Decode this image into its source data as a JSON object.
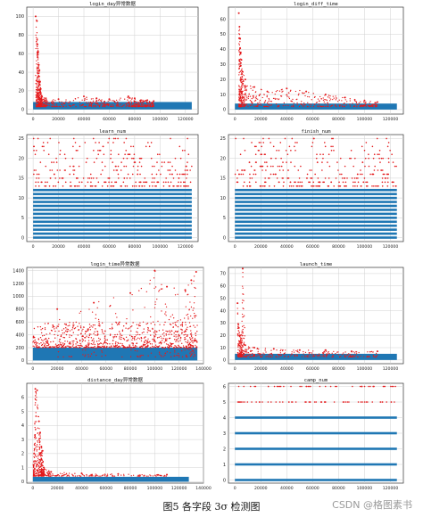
{
  "caption": "图5 各字段 3σ 检测图",
  "watermark": "CSDN @格图素书",
  "colors": {
    "normal": "#1f77b4",
    "outlier": "#e41a1c",
    "grid": "#d0d0d0",
    "axis": "#333333"
  },
  "chart_data": [
    {
      "type": "scatter",
      "title": "login_day异常数据",
      "xlim": [
        -5000,
        130000
      ],
      "ylim": [
        -5,
        110
      ],
      "xticks": [
        0,
        20000,
        40000,
        60000,
        80000,
        100000,
        120000
      ],
      "yticks": [
        0,
        20,
        40,
        60,
        80,
        100
      ],
      "series": [
        {
          "role": "normal",
          "band": [
            0,
            8
          ],
          "xrange": [
            0,
            125000
          ]
        },
        {
          "role": "outlier",
          "description_points": [
            [
              2000,
              100
            ],
            [
              3000,
              95
            ],
            [
              3500,
              70
            ],
            [
              4000,
              62
            ],
            [
              4500,
              48
            ],
            [
              5000,
              42
            ],
            [
              5500,
              30
            ],
            [
              6000,
              22
            ],
            [
              7000,
              14
            ],
            [
              10000,
              12
            ],
            [
              20000,
              11
            ],
            [
              40000,
              14
            ],
            [
              50000,
              12
            ],
            [
              60000,
              11
            ],
            [
              75000,
              14
            ],
            [
              80000,
              12
            ],
            [
              85000,
              10
            ],
            [
              90000,
              10
            ],
            [
              95000,
              9
            ]
          ]
        }
      ]
    },
    {
      "type": "scatter",
      "title": "login_diff_time",
      "xlim": [
        -5000,
        130000
      ],
      "ylim": [
        -3,
        68
      ],
      "xticks": [
        0,
        20000,
        40000,
        60000,
        80000,
        100000,
        120000
      ],
      "yticks": [
        0,
        10,
        20,
        30,
        40,
        50,
        60
      ],
      "series": [
        {
          "role": "normal",
          "band": [
            0,
            4
          ],
          "xrange": [
            0,
            125000
          ]
        },
        {
          "role": "outlier",
          "description_points": [
            [
              3000,
              64
            ],
            [
              3500,
              55
            ],
            [
              4000,
              47
            ],
            [
              4500,
              38
            ],
            [
              5000,
              33
            ],
            [
              6000,
              25
            ],
            [
              8000,
              20
            ],
            [
              15000,
              15
            ],
            [
              25000,
              12
            ],
            [
              40000,
              14
            ],
            [
              55000,
              12
            ],
            [
              70000,
              10
            ],
            [
              85000,
              8
            ],
            [
              100000,
              6
            ],
            [
              110000,
              5
            ]
          ]
        }
      ]
    },
    {
      "type": "scatter",
      "title": "learn_num",
      "xlim": [
        -5000,
        130000
      ],
      "ylim": [
        -1,
        26
      ],
      "xticks": [
        0,
        20000,
        40000,
        60000,
        80000,
        100000,
        120000
      ],
      "yticks": [
        0,
        5,
        10,
        15,
        20,
        25
      ],
      "series": [
        {
          "role": "normal",
          "levels": [
            0,
            1,
            2,
            3,
            4,
            5,
            6,
            7,
            8,
            9,
            10,
            11,
            12
          ],
          "xrange": [
            0,
            125000
          ]
        },
        {
          "role": "outlier",
          "levels": [
            13,
            14,
            15,
            16,
            17,
            18,
            19,
            20,
            21,
            22,
            23,
            24,
            25
          ],
          "xrange": [
            0,
            125000
          ]
        }
      ]
    },
    {
      "type": "scatter",
      "title": "finish_num",
      "xlim": [
        -5000,
        130000
      ],
      "ylim": [
        -1,
        26
      ],
      "xticks": [
        0,
        20000,
        40000,
        60000,
        80000,
        100000,
        120000
      ],
      "yticks": [
        0,
        5,
        10,
        15,
        20,
        25
      ],
      "series": [
        {
          "role": "normal",
          "levels": [
            0,
            1,
            2,
            3,
            4,
            5,
            6,
            7,
            8,
            9,
            10,
            11,
            12
          ],
          "xrange": [
            0,
            125000
          ]
        },
        {
          "role": "outlier",
          "levels": [
            13,
            14,
            15,
            16,
            17,
            18,
            19,
            20,
            21,
            22,
            23,
            24,
            25
          ],
          "xrange": [
            0,
            125000
          ]
        }
      ]
    },
    {
      "type": "scatter",
      "title": "login_time异常数据",
      "xlim": [
        -5000,
        140000
      ],
      "ylim": [
        -50,
        1450
      ],
      "xticks": [
        0,
        20000,
        40000,
        60000,
        80000,
        100000,
        120000,
        140000
      ],
      "yticks": [
        0,
        200,
        400,
        600,
        800,
        1000,
        1200,
        1400
      ],
      "series": [
        {
          "role": "normal",
          "band": [
            0,
            200
          ],
          "xrange": [
            0,
            135000
          ]
        },
        {
          "role": "outlier",
          "band": [
            200,
            600
          ],
          "xrange": [
            0,
            135000
          ],
          "description_points": [
            [
              20000,
              800
            ],
            [
              50000,
              900
            ],
            [
              80000,
              1050
            ],
            [
              100000,
              1400
            ],
            [
              110000,
              1150
            ],
            [
              125000,
              1100
            ],
            [
              130000,
              1250
            ],
            [
              134000,
              1380
            ]
          ]
        }
      ]
    },
    {
      "type": "scatter",
      "title": "launch_time",
      "xlim": [
        -5000,
        130000
      ],
      "ylim": [
        -3,
        75
      ],
      "xticks": [
        0,
        20000,
        40000,
        60000,
        80000,
        100000,
        120000
      ],
      "yticks": [
        0,
        10,
        20,
        30,
        40,
        50,
        60,
        70
      ],
      "series": [
        {
          "role": "normal",
          "band": [
            0,
            5
          ],
          "xrange": [
            0,
            125000
          ]
        },
        {
          "role": "outlier",
          "description_points": [
            [
              2000,
              46
            ],
            [
              3000,
              26
            ],
            [
              4000,
              20
            ],
            [
              5000,
              14
            ],
            [
              6000,
              74
            ],
            [
              8000,
              12
            ],
            [
              15000,
              10
            ],
            [
              30000,
              9
            ],
            [
              50000,
              8
            ],
            [
              70000,
              8
            ],
            [
              90000,
              7
            ],
            [
              110000,
              7
            ]
          ]
        }
      ]
    },
    {
      "type": "scatter",
      "title": "distance_day异常数据",
      "xlim": [
        -5000,
        140000
      ],
      "ylim": [
        -0.1,
        7
      ],
      "xticks": [
        0,
        20000,
        40000,
        60000,
        80000,
        100000,
        120000,
        140000
      ],
      "yticks": [
        0,
        1,
        2,
        3,
        4,
        5,
        6
      ],
      "series": [
        {
          "role": "normal",
          "band": [
            0,
            0.35
          ],
          "xrange": [
            0,
            128000
          ]
        },
        {
          "role": "outlier",
          "description_points": [
            [
              500,
              1.2
            ],
            [
              1000,
              2.0
            ],
            [
              2000,
              6.6
            ],
            [
              3500,
              6.5
            ],
            [
              5000,
              4.3
            ],
            [
              6000,
              3.5
            ],
            [
              7000,
              2.5
            ],
            [
              8000,
              2.2
            ],
            [
              9000,
              1.0
            ],
            [
              15000,
              0.7
            ],
            [
              40000,
              0.6
            ],
            [
              70000,
              0.55
            ],
            [
              110000,
              0.5
            ]
          ]
        }
      ]
    },
    {
      "type": "scatter",
      "title": "camp_num",
      "xlim": [
        -5000,
        130000
      ],
      "ylim": [
        -0.2,
        6.2
      ],
      "xticks": [
        0,
        20000,
        40000,
        60000,
        80000,
        100000,
        120000
      ],
      "yticks": [
        0,
        1,
        2,
        3,
        4,
        5,
        6
      ],
      "series": [
        {
          "role": "normal",
          "levels": [
            0,
            1,
            2,
            3,
            4
          ],
          "xrange": [
            0,
            125000
          ]
        },
        {
          "role": "outlier",
          "levels": [
            5,
            6
          ],
          "xrange": [
            0,
            125000
          ]
        }
      ]
    }
  ]
}
